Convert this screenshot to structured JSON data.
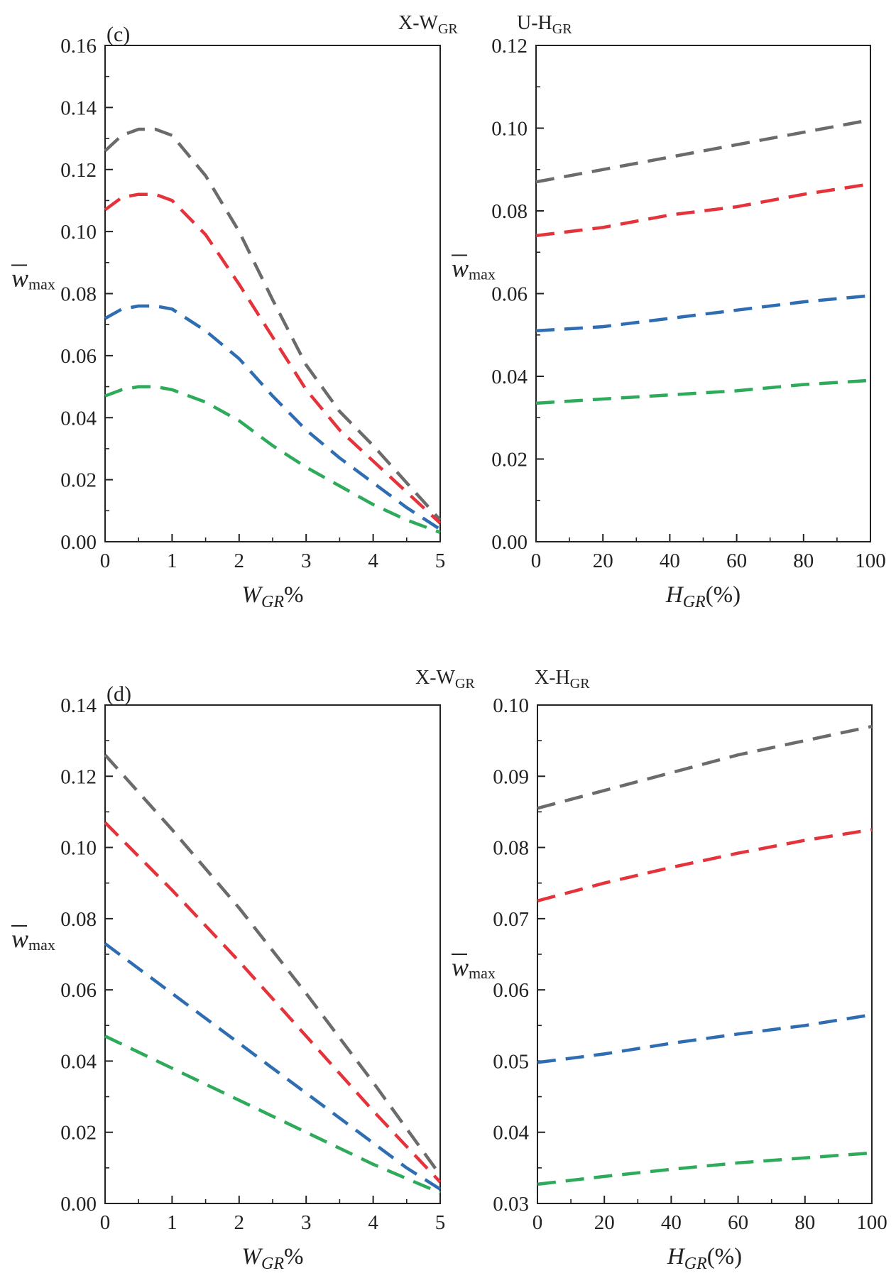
{
  "colors": {
    "gray": "#6b6b6b",
    "red": "#e5333b",
    "blue": "#2f6db3",
    "green": "#2eaa5b"
  },
  "chart_data": [
    {
      "id": "c-left",
      "type": "line",
      "panel_label": "(c)",
      "title": "X-W",
      "title_sub": "GR",
      "xlabel": "W",
      "xlabel_sub": "GR",
      "xlabel_suffix": "%",
      "ylabel": "w",
      "ylabel_sub": "max",
      "xlim": [
        0,
        5
      ],
      "ylim": [
        0,
        0.16
      ],
      "xticks": [
        "0",
        "1",
        "2",
        "3",
        "4",
        "5"
      ],
      "yticks": [
        "0.00",
        "0.02",
        "0.04",
        "0.06",
        "0.08",
        "0.10",
        "0.12",
        "0.14",
        "0.16"
      ],
      "x": [
        0,
        0.25,
        0.5,
        0.75,
        1,
        1.5,
        2,
        2.5,
        3,
        3.5,
        4,
        4.5,
        5
      ],
      "series": [
        {
          "name": "gray",
          "color": "#6b6b6b",
          "values": [
            0.126,
            0.131,
            0.133,
            0.133,
            0.131,
            0.118,
            0.1,
            0.078,
            0.057,
            0.042,
            0.031,
            0.019,
            0.007
          ]
        },
        {
          "name": "red",
          "color": "#e5333b",
          "values": [
            0.107,
            0.111,
            0.112,
            0.112,
            0.11,
            0.099,
            0.083,
            0.066,
            0.049,
            0.036,
            0.026,
            0.016,
            0.006
          ]
        },
        {
          "name": "blue",
          "color": "#2f6db3",
          "values": [
            0.072,
            0.075,
            0.076,
            0.076,
            0.075,
            0.068,
            0.059,
            0.047,
            0.036,
            0.027,
            0.019,
            0.011,
            0.004
          ]
        },
        {
          "name": "green",
          "color": "#2eaa5b",
          "values": [
            0.047,
            0.049,
            0.05,
            0.05,
            0.049,
            0.045,
            0.039,
            0.031,
            0.024,
            0.018,
            0.012,
            0.007,
            0.003
          ]
        }
      ]
    },
    {
      "id": "c-right",
      "type": "line",
      "panel_label": "",
      "title": "U-H",
      "title_sub": "GR",
      "xlabel": "H",
      "xlabel_sub": "GR",
      "xlabel_suffix": "(%)",
      "ylabel": "w",
      "ylabel_sub": "max",
      "xlim": [
        0,
        100
      ],
      "ylim": [
        0,
        0.12
      ],
      "xticks": [
        "0",
        "20",
        "40",
        "60",
        "80",
        "100"
      ],
      "yticks": [
        "0.00",
        "0.02",
        "0.04",
        "0.06",
        "0.08",
        "0.10",
        "0.12"
      ],
      "x": [
        0,
        20,
        40,
        60,
        80,
        100
      ],
      "series": [
        {
          "name": "gray",
          "color": "#6b6b6b",
          "values": [
            0.087,
            0.09,
            0.093,
            0.096,
            0.099,
            0.102
          ]
        },
        {
          "name": "red",
          "color": "#e5333b",
          "values": [
            0.074,
            0.076,
            0.079,
            0.081,
            0.084,
            0.0865
          ]
        },
        {
          "name": "blue",
          "color": "#2f6db3",
          "values": [
            0.051,
            0.052,
            0.054,
            0.056,
            0.058,
            0.0595
          ]
        },
        {
          "name": "green",
          "color": "#2eaa5b",
          "values": [
            0.0335,
            0.0345,
            0.0355,
            0.0365,
            0.038,
            0.039
          ]
        }
      ]
    },
    {
      "id": "d-left",
      "type": "line",
      "panel_label": "(d)",
      "title": "X-W",
      "title_sub": "GR",
      "xlabel": "W",
      "xlabel_sub": "GR",
      "xlabel_suffix": "%",
      "ylabel": "w",
      "ylabel_sub": "max",
      "xlim": [
        0,
        5
      ],
      "ylim": [
        0,
        0.14
      ],
      "xticks": [
        "0",
        "1",
        "2",
        "3",
        "4",
        "5"
      ],
      "yticks": [
        "0.00",
        "0.02",
        "0.04",
        "0.06",
        "0.08",
        "0.10",
        "0.12",
        "0.14"
      ],
      "x": [
        0,
        1,
        2,
        3,
        4,
        4.5,
        5
      ],
      "series": [
        {
          "name": "gray",
          "color": "#6b6b6b",
          "values": [
            0.126,
            0.105,
            0.083,
            0.059,
            0.034,
            0.021,
            0.008
          ]
        },
        {
          "name": "red",
          "color": "#e5333b",
          "values": [
            0.107,
            0.088,
            0.068,
            0.047,
            0.026,
            0.016,
            0.006
          ]
        },
        {
          "name": "blue",
          "color": "#2f6db3",
          "values": [
            0.073,
            0.059,
            0.045,
            0.031,
            0.017,
            0.01,
            0.004
          ]
        },
        {
          "name": "green",
          "color": "#2eaa5b",
          "values": [
            0.047,
            0.038,
            0.029,
            0.02,
            0.011,
            0.007,
            0.003
          ]
        }
      ]
    },
    {
      "id": "d-right",
      "type": "line",
      "panel_label": "",
      "title": "X-H",
      "title_sub": "GR",
      "xlabel": "H",
      "xlabel_sub": "GR",
      "xlabel_suffix": "(%)",
      "ylabel": "w",
      "ylabel_sub": "max",
      "xlim": [
        0,
        100
      ],
      "ylim": [
        0.03,
        0.1
      ],
      "xticks": [
        "0",
        "20",
        "40",
        "60",
        "80",
        "100"
      ],
      "yticks": [
        "0.03",
        "0.04",
        "0.05",
        "0.06",
        "0.07",
        "0.08",
        "0.09",
        "0.10"
      ],
      "x": [
        0,
        20,
        40,
        60,
        80,
        100
      ],
      "series": [
        {
          "name": "gray",
          "color": "#6b6b6b",
          "values": [
            0.0855,
            0.088,
            0.0905,
            0.093,
            0.095,
            0.097
          ]
        },
        {
          "name": "red",
          "color": "#e5333b",
          "values": [
            0.0725,
            0.075,
            0.0772,
            0.0792,
            0.081,
            0.0825
          ]
        },
        {
          "name": "blue",
          "color": "#2f6db3",
          "values": [
            0.0498,
            0.051,
            0.0525,
            0.0538,
            0.055,
            0.0565
          ]
        },
        {
          "name": "green",
          "color": "#2eaa5b",
          "values": [
            0.0327,
            0.0338,
            0.0348,
            0.0357,
            0.0364,
            0.0371
          ]
        }
      ]
    }
  ]
}
